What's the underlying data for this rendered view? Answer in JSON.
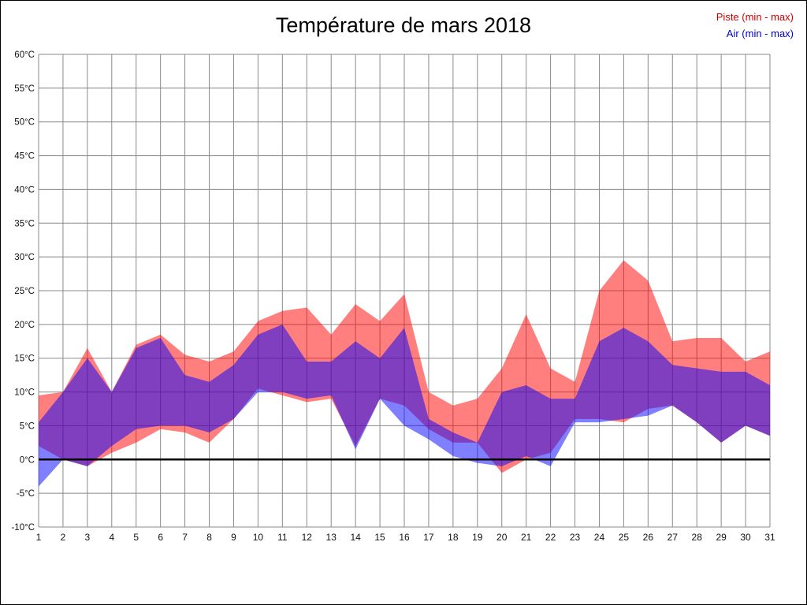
{
  "title": "Température de mars 2018",
  "legend": {
    "piste": {
      "label": "Piste (min - max)",
      "color": "#cc0000"
    },
    "air": {
      "label": "Air (min - max)",
      "color": "#0000cc"
    }
  },
  "chart_data": {
    "type": "area",
    "title": "Température de mars 2018",
    "x": [
      1,
      2,
      3,
      4,
      5,
      6,
      7,
      8,
      9,
      10,
      11,
      12,
      13,
      14,
      15,
      16,
      17,
      18,
      19,
      20,
      21,
      22,
      23,
      24,
      25,
      26,
      27,
      28,
      29,
      30,
      31
    ],
    "series": [
      {
        "name": "Piste (min - max)",
        "fill": "rgba(255,0,0,0.5)",
        "min": [
          2,
          0,
          -1,
          1,
          2.5,
          4.5,
          4,
          2.5,
          6,
          10.5,
          9.5,
          8.5,
          9,
          2,
          9,
          8,
          4.5,
          2.5,
          2.5,
          -2,
          0,
          1,
          6,
          6,
          5.5,
          7.5,
          8,
          5.5,
          2.5,
          5,
          3.5
        ],
        "max": [
          9.5,
          10,
          16.5,
          10,
          17,
          18.5,
          15.5,
          14.5,
          16,
          20.5,
          22,
          22.5,
          18.5,
          23,
          20.5,
          24.5,
          10,
          8,
          9,
          13.5,
          21.5,
          13.5,
          11.5,
          25,
          29.5,
          26.5,
          17.5,
          18,
          18,
          14.5,
          16
        ]
      },
      {
        "name": "Air (min - max)",
        "fill": "rgba(0,0,255,0.5)",
        "min": [
          -4,
          0,
          -1,
          2,
          4.5,
          5,
          5,
          4,
          6,
          10,
          10,
          9,
          9.5,
          1.5,
          9,
          5,
          3,
          0.5,
          -0.5,
          -1,
          0.5,
          -1,
          5.5,
          5.5,
          6,
          6.5,
          8,
          5.5,
          2.5,
          5,
          3.5
        ],
        "max": [
          5.5,
          10,
          15,
          10,
          16.5,
          18,
          12.5,
          11.5,
          14,
          18.5,
          20,
          14.5,
          14.5,
          17.5,
          15,
          19.5,
          6,
          4,
          2.5,
          10,
          11,
          9,
          9,
          17.5,
          19.5,
          17.5,
          14,
          13.5,
          13,
          13,
          11
        ]
      }
    ],
    "ylim": [
      -10,
      60
    ],
    "ytick_step": 5,
    "ytick_suffix": "°C",
    "xlabel": "",
    "ylabel": "",
    "grid": true,
    "zero_line": true,
    "legend_position": "top-right"
  }
}
